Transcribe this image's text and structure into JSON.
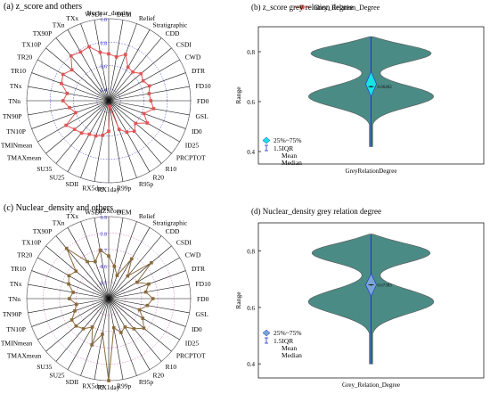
{
  "chart_data": [
    {
      "type": "radar",
      "title": "(a) z_score and others",
      "legend": "Grey_Relation_Degree",
      "legend_placement": "top-right",
      "rlim": [
        0.3,
        1.0
      ],
      "tick_labels": [
        "0.4",
        "0.6",
        "0.8",
        "1.0"
      ],
      "categories": [
        "Nuclear_density",
        "DEM",
        "Relief",
        "Stratigraphic",
        "CDD",
        "CSDI",
        "CWD",
        "DTR",
        "FD10",
        "FD0",
        "GSL",
        "ID0",
        "ID25",
        "PRCPTOT",
        "R10",
        "R20",
        "R95p",
        "R99p",
        "RX1day",
        "RX5day",
        "SDII",
        "SU25",
        "SU35",
        "TMAXmean",
        "TMINmean",
        "TN10P",
        "TN90P",
        "TNn",
        "TNx",
        "TR10",
        "TR20",
        "TX10P",
        "TX90P",
        "TXn",
        "TXx",
        "WSDI"
      ],
      "values": [
        0.7,
        0.68,
        0.72,
        0.63,
        0.62,
        0.66,
        0.64,
        0.67,
        0.65,
        0.66,
        0.69,
        0.62,
        0.68,
        0.6,
        0.64,
        0.61,
        0.56,
        0.35,
        0.56,
        0.6,
        0.62,
        0.63,
        0.66,
        0.68,
        0.72,
        0.6,
        0.64,
        0.69,
        0.66,
        0.73,
        0.75,
        0.71,
        0.8,
        0.78,
        0.79,
        0.72
      ],
      "line_color": "#e05555"
    },
    {
      "type": "violin",
      "title": "(b) z_score grey relation degree",
      "xlabel": "GreyRelationDegree",
      "ylabel": "Range",
      "ylim": [
        0.35,
        0.9
      ],
      "yticks": [
        "0.4",
        "0.6",
        "0.8"
      ],
      "min": 0.42,
      "max": 0.86,
      "q1": 0.62,
      "q3": 0.72,
      "median": 0.66,
      "mean": 0.66,
      "mean_label": "0.66402",
      "legend": [
        "25%~75%",
        "1.5IQR",
        "Mean",
        "Median"
      ],
      "color": "#4b8b86",
      "box_color": "#19e3e3"
    },
    {
      "type": "radar",
      "title": "(c) Nuclear_density and others",
      "rlim": [
        0.4,
        0.9
      ],
      "tick_labels": [
        "0.5",
        "0.6",
        "0.7",
        "0.8",
        "0.9"
      ],
      "categories": [
        "GiZScore",
        "DEM",
        "Relief",
        "Stratigraphic",
        "CDD",
        "CSDI",
        "CWD",
        "DTR",
        "FD10",
        "FD0",
        "GSL",
        "ID0",
        "ID25",
        "PRCPTOT",
        "R10",
        "R20",
        "R95p",
        "R99p",
        "RX1day",
        "RX5day",
        "SDII",
        "SU25",
        "SU35",
        "TMAXmean",
        "TMINmean",
        "TN10P",
        "TN90P",
        "TNn",
        "TNx",
        "TR10",
        "TR20",
        "TX10P",
        "TX90P",
        "TXn",
        "TXx",
        "WSDI"
      ],
      "values": [
        0.66,
        0.6,
        0.55,
        0.68,
        0.58,
        0.74,
        0.6,
        0.66,
        0.63,
        0.67,
        0.64,
        0.6,
        0.64,
        0.68,
        0.64,
        0.6,
        0.62,
        0.58,
        0.9,
        0.62,
        0.7,
        0.6,
        0.64,
        0.66,
        0.66,
        0.62,
        0.6,
        0.64,
        0.62,
        0.66,
        0.68,
        0.66,
        0.8,
        0.66,
        0.64,
        0.7
      ],
      "line_color": "#8b6a3c"
    },
    {
      "type": "violin",
      "title": "(d) Nuclear_density grey relation degree",
      "xlabel": "Grey_Relation_Degree",
      "ylabel": "Range",
      "ylim": [
        0.35,
        0.9
      ],
      "yticks": [
        "0.4",
        "0.6",
        "0.8"
      ],
      "min": 0.4,
      "max": 0.86,
      "q1": 0.64,
      "q3": 0.72,
      "median": 0.68,
      "mean": 0.68,
      "mean_label": "0.67383",
      "legend": [
        "25%~75%",
        "1.5IQR",
        "Mean",
        "Median"
      ],
      "color": "#4b8b86",
      "box_color": "#7aa6d6"
    }
  ]
}
